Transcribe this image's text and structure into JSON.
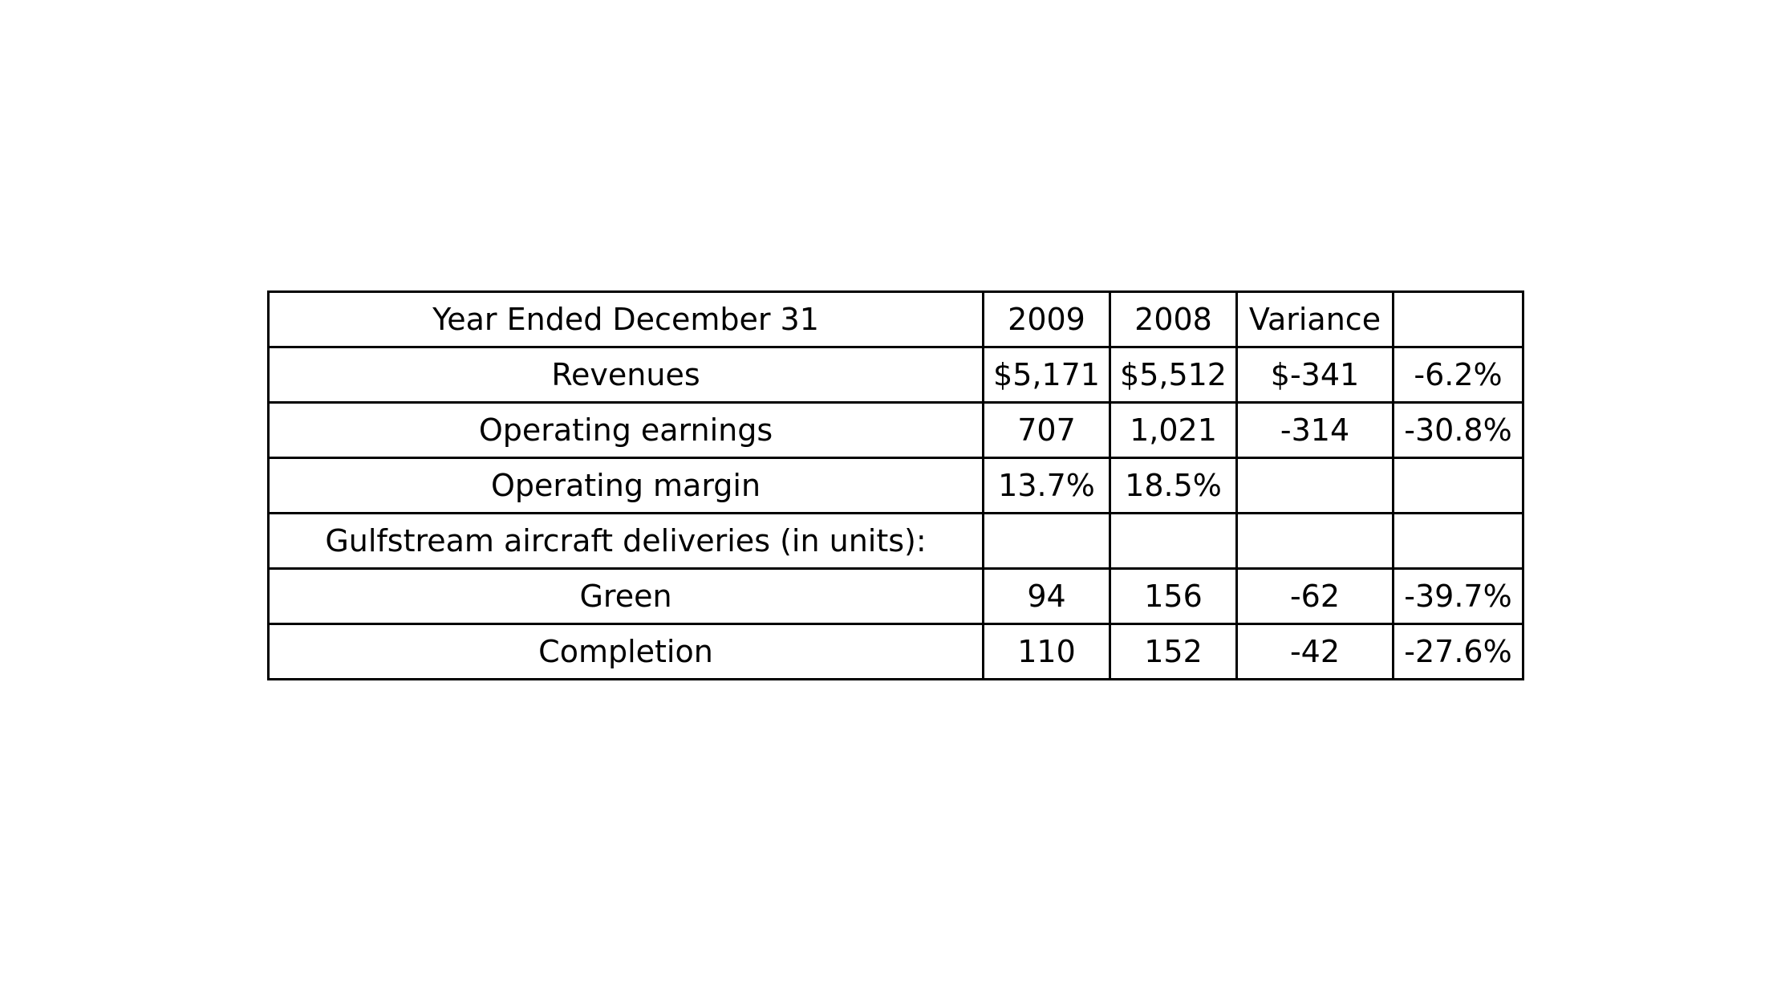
{
  "table": {
    "header": [
      "Year Ended December 31",
      "2009",
      "2008",
      "Variance",
      ""
    ],
    "rows": [
      [
        "Revenues",
        "$5,171",
        "$5,512",
        "$-341",
        "-6.2%"
      ],
      [
        "Operating earnings",
        "707",
        "1,021",
        "-314",
        "-30.8%"
      ],
      [
        "Operating margin",
        "13.7%",
        "18.5%",
        "",
        ""
      ],
      [
        "Gulfstream aircraft deliveries (in units):",
        "",
        "",
        "",
        ""
      ],
      [
        "Green",
        "94",
        "156",
        "-62",
        "-39.7%"
      ],
      [
        "Completion",
        "110",
        "152",
        "-42",
        "-27.6%"
      ]
    ]
  }
}
